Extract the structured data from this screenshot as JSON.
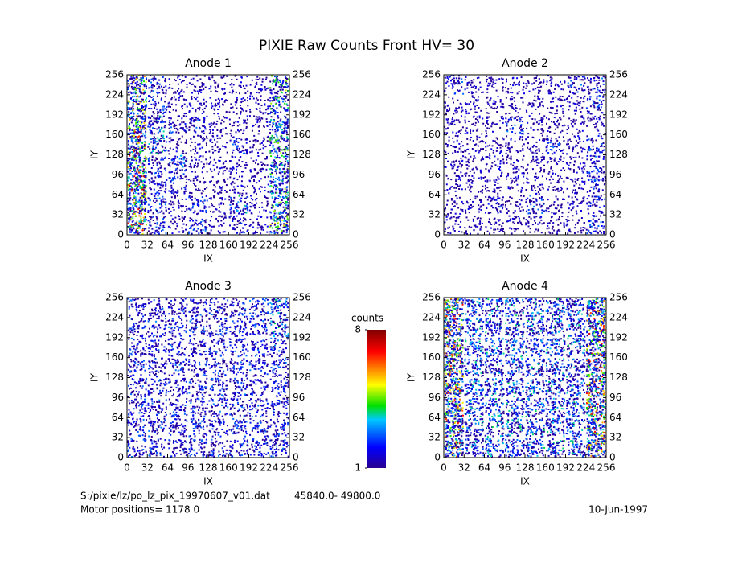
{
  "title": "PIXIE Raw Counts Front HV= 30",
  "chart_data": [
    {
      "type": "heatmap",
      "title": "Anode 1",
      "xlabel": "IX",
      "ylabel": "IY",
      "xlim": [
        0,
        256
      ],
      "ylim": [
        0,
        256
      ],
      "xticks": [
        0,
        32,
        64,
        96,
        128,
        160,
        192,
        224,
        256
      ],
      "yticks": [
        0,
        32,
        64,
        96,
        128,
        160,
        192,
        224,
        256
      ],
      "values": [
        [
          7,
          3,
          2,
          3,
          2,
          3,
          2,
          6
        ],
        [
          7,
          3,
          2,
          3,
          2,
          4,
          2,
          5
        ],
        [
          8,
          3,
          3,
          2,
          2,
          2,
          2,
          5
        ],
        [
          7,
          3,
          4,
          2,
          2,
          2,
          2,
          5
        ],
        [
          7,
          4,
          2,
          2,
          2,
          3,
          2,
          5
        ],
        [
          7,
          4,
          3,
          3,
          2,
          2,
          2,
          5
        ],
        [
          6,
          3,
          2,
          2,
          2,
          2,
          2,
          5
        ],
        [
          6,
          3,
          2,
          2,
          2,
          2,
          2,
          5
        ]
      ]
    },
    {
      "type": "heatmap",
      "title": "Anode 2",
      "xlabel": "IX",
      "ylabel": "IY",
      "xlim": [
        0,
        256
      ],
      "ylim": [
        0,
        256
      ],
      "xticks": [
        0,
        32,
        64,
        96,
        128,
        160,
        192,
        224,
        256
      ],
      "yticks": [
        0,
        32,
        64,
        96,
        128,
        160,
        192,
        224,
        256
      ],
      "values": [
        [
          2,
          2,
          2,
          2,
          2,
          2,
          2,
          3
        ],
        [
          2,
          2,
          3,
          2,
          3,
          2,
          2,
          3
        ],
        [
          2,
          2,
          2,
          2,
          2,
          2,
          2,
          3
        ],
        [
          2,
          2,
          2,
          2,
          2,
          2,
          2,
          3
        ],
        [
          2,
          2,
          2,
          2,
          2,
          3,
          2,
          3
        ],
        [
          2,
          2,
          2,
          3,
          2,
          2,
          2,
          2
        ],
        [
          2,
          2,
          2,
          2,
          2,
          2,
          2,
          3
        ],
        [
          3,
          2,
          2,
          2,
          2,
          2,
          3,
          3
        ]
      ]
    },
    {
      "type": "heatmap",
      "title": "Anode 3",
      "xlabel": "IX",
      "ylabel": "IY",
      "xlim": [
        0,
        256
      ],
      "ylim": [
        0,
        256
      ],
      "xticks": [
        0,
        32,
        64,
        96,
        128,
        160,
        192,
        224,
        256
      ],
      "yticks": [
        0,
        32,
        64,
        96,
        128,
        160,
        192,
        224,
        256
      ],
      "values": [
        [
          3,
          3,
          3,
          3,
          3,
          3,
          3,
          4
        ],
        [
          3,
          3,
          3,
          3,
          3,
          3,
          3,
          3
        ],
        [
          3,
          3,
          3,
          3,
          3,
          3,
          3,
          3
        ],
        [
          3,
          3,
          3,
          3,
          3,
          3,
          3,
          3
        ],
        [
          3,
          3,
          3,
          3,
          3,
          3,
          3,
          3
        ],
        [
          3,
          3,
          3,
          3,
          3,
          3,
          3,
          3
        ],
        [
          3,
          3,
          3,
          3,
          3,
          3,
          3,
          4
        ],
        [
          3,
          3,
          3,
          3,
          3,
          3,
          3,
          4
        ]
      ]
    },
    {
      "type": "heatmap",
      "title": "Anode 4",
      "xlabel": "IX",
      "ylabel": "IY",
      "xlim": [
        0,
        256
      ],
      "ylim": [
        0,
        256
      ],
      "xticks": [
        0,
        32,
        64,
        96,
        128,
        160,
        192,
        224,
        256
      ],
      "yticks": [
        0,
        32,
        64,
        96,
        128,
        160,
        192,
        224,
        256
      ],
      "values": [
        [
          7,
          4,
          4,
          4,
          4,
          4,
          4,
          7
        ],
        [
          7,
          4,
          4,
          4,
          4,
          4,
          4,
          7
        ],
        [
          7,
          4,
          4,
          4,
          4,
          4,
          4,
          7
        ],
        [
          7,
          4,
          4,
          4,
          4,
          4,
          4,
          7
        ],
        [
          7,
          4,
          4,
          4,
          4,
          4,
          4,
          7
        ],
        [
          7,
          4,
          4,
          4,
          4,
          4,
          4,
          7
        ],
        [
          7,
          4,
          4,
          4,
          4,
          4,
          4,
          7
        ],
        [
          7,
          4,
          4,
          4,
          4,
          4,
          4,
          7
        ]
      ]
    }
  ],
  "colorbar": {
    "label": "counts",
    "lim": [
      1,
      8
    ],
    "ticks": [
      1,
      8
    ]
  },
  "footer": {
    "file": "S:/pixie/lz/po_lz_pix_19970607_v01.dat",
    "range": "45840.0- 49800.0",
    "motor": "Motor positions= 1178 0",
    "date": "10-Jun-1997"
  }
}
